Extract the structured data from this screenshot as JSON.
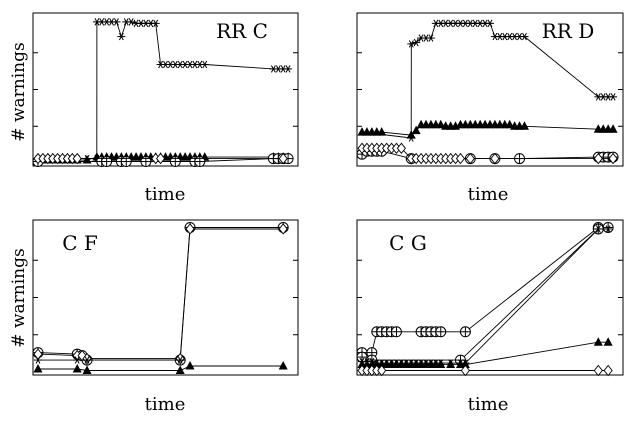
{
  "figure": {
    "panels": [
      {
        "title": "RR C",
        "xlabel": "time",
        "ylabel": "# warnings"
      },
      {
        "title": "RR D",
        "xlabel": "time",
        "ylabel": ""
      },
      {
        "title": "C F",
        "xlabel": "time",
        "ylabel": "# warnings"
      },
      {
        "title": "C G",
        "xlabel": "time",
        "ylabel": ""
      }
    ]
  },
  "chart_data": [
    {
      "type": "line",
      "title": "RR C",
      "xlabel": "time",
      "ylabel": "# warnings",
      "xlim": [
        0,
        26
      ],
      "ylim": [
        0,
        100
      ],
      "grid": false,
      "legend": false,
      "tick_labels_shown": false,
      "series": [
        {
          "marker": "asterisk",
          "x": [
            0,
            1,
            2,
            3,
            4,
            5,
            6,
            6.01,
            6.5,
            7,
            7.5,
            8,
            8.5,
            9,
            9.5,
            10,
            10.5,
            11,
            11.5,
            12,
            12.5,
            13,
            13.5,
            14,
            14.5,
            15,
            15.5,
            16,
            16.5,
            17,
            24,
            24.5,
            25,
            25.5
          ],
          "y": [
            3,
            3,
            3,
            3,
            3,
            3,
            3,
            96,
            96,
            96,
            96,
            96,
            86,
            96,
            96,
            95,
            95,
            95,
            95,
            95,
            67,
            67,
            67,
            67,
            67,
            67,
            67,
            67,
            67,
            67,
            64,
            64,
            64,
            64
          ]
        },
        {
          "marker": "triangle",
          "x": [
            0,
            1,
            2,
            3,
            4,
            5,
            6,
            6.5,
            7,
            7.5,
            8,
            8.5,
            9,
            9.5,
            10,
            10.5,
            11,
            11.5,
            12,
            12.5,
            13,
            13.5,
            14,
            14.5,
            15,
            15.5,
            16,
            16.5,
            17,
            24,
            24.5,
            25,
            25.5
          ],
          "y": [
            2,
            2,
            2,
            2,
            2,
            2,
            4,
            4,
            4,
            4,
            4,
            4,
            4,
            4,
            4,
            4,
            4,
            4,
            4,
            4,
            4,
            4,
            4,
            4,
            4,
            4,
            4,
            4,
            4,
            4,
            4,
            4,
            4
          ]
        },
        {
          "marker": "circle-plus",
          "x": [
            0,
            6.5,
            7,
            8.5,
            9,
            11,
            14,
            16,
            16.5,
            24,
            24.5,
            25,
            25.5
          ],
          "y": [
            1,
            1,
            1,
            1,
            1,
            1,
            1,
            1,
            1,
            3,
            3,
            3,
            3
          ]
        },
        {
          "marker": "diamond",
          "x": [
            0,
            0.5,
            1,
            1.5,
            2,
            2.5,
            3,
            3.5,
            4,
            12,
            12.5,
            25
          ],
          "y": [
            3,
            3,
            3,
            3,
            3,
            3,
            3,
            3,
            3,
            3,
            3,
            3
          ]
        }
      ]
    },
    {
      "type": "line",
      "title": "RR D",
      "xlabel": "time",
      "ylabel": "",
      "xlim": [
        0,
        26
      ],
      "ylim": [
        0,
        100
      ],
      "grid": false,
      "legend": false,
      "tick_labels_shown": false,
      "series": [
        {
          "marker": "asterisk",
          "x": [
            5,
            5.01,
            5.5,
            6,
            6.5,
            7,
            7.5,
            8,
            8.5,
            9,
            9.5,
            10,
            10.5,
            11,
            11.5,
            12,
            12.5,
            13,
            13.5,
            14,
            14.5,
            15,
            15.5,
            16,
            16.5,
            24,
            24.5,
            25,
            25.5
          ],
          "y": [
            17,
            81,
            82,
            85,
            85,
            85,
            95,
            95,
            95,
            95,
            95,
            95,
            95,
            95,
            95,
            95,
            95,
            95,
            86,
            86,
            86,
            86,
            86,
            86,
            86,
            45,
            45,
            45,
            45
          ],
          "first_segment": "from triangle series start"
        },
        {
          "marker": "triangle",
          "x": [
            0,
            0.5,
            1,
            1.5,
            2,
            5,
            5.5,
            6,
            6.5,
            7,
            7.5,
            8,
            8.5,
            9,
            9.5,
            10,
            10.5,
            11,
            11.5,
            12,
            12.5,
            13,
            13.5,
            14,
            14.5,
            15,
            15.5,
            16,
            16.5,
            24,
            24.5,
            25,
            25.5
          ],
          "y": [
            21,
            21,
            21,
            21,
            21,
            19,
            22,
            26,
            26,
            26,
            26,
            26,
            25,
            25,
            25,
            26,
            26,
            26,
            26,
            26,
            26,
            26,
            26,
            26,
            26,
            26,
            25,
            25,
            25,
            23,
            23,
            23,
            23
          ]
        },
        {
          "marker": "circle-plus",
          "x": [
            0,
            0.5,
            1,
            1.5,
            2,
            5,
            11,
            13.5,
            16,
            24,
            24.5,
            25,
            25.5
          ],
          "y": [
            6,
            8,
            8,
            8,
            8,
            3,
            3,
            3,
            3,
            4,
            4,
            4,
            4
          ]
        },
        {
          "marker": "diamond",
          "x": [
            0,
            0.5,
            1,
            1.5,
            2,
            2.5,
            3,
            3.5,
            4,
            5,
            5.5,
            6,
            6.5,
            7,
            7.5,
            8,
            8.5,
            9,
            9.5,
            10,
            11,
            13.5,
            24,
            25.5
          ],
          "y": [
            10,
            10,
            10,
            10,
            10,
            10,
            10,
            10,
            10,
            3,
            3,
            3,
            3,
            3,
            3,
            3,
            3,
            3,
            3,
            3,
            3,
            3,
            3,
            3
          ]
        }
      ]
    },
    {
      "type": "line",
      "title": "C F",
      "xlabel": "time",
      "ylabel": "# warnings",
      "xlim": [
        0,
        26
      ],
      "ylim": [
        0,
        100
      ],
      "grid": false,
      "legend": false,
      "tick_labels_shown": false,
      "series": [
        {
          "marker": "circle-plus",
          "x": [
            0,
            4,
            4.5,
            5,
            14.5,
            15.5,
            25
          ],
          "y": [
            13,
            12,
            11,
            8,
            8,
            97,
            97
          ]
        },
        {
          "marker": "diamond",
          "x": [
            0,
            4,
            4.5,
            5,
            14.5,
            15.5,
            25
          ],
          "y": [
            12,
            11,
            11,
            9,
            9,
            96,
            96
          ]
        },
        {
          "marker": "asterisk",
          "x": [
            0,
            4,
            5,
            14.5
          ],
          "y": [
            8,
            8,
            8,
            8
          ]
        },
        {
          "marker": "triangle",
          "x": [
            0,
            4,
            5,
            14.5,
            15.5,
            25
          ],
          "y": [
            2,
            2,
            1,
            1,
            4,
            4
          ]
        }
      ]
    },
    {
      "type": "line",
      "title": "C G",
      "xlabel": "time",
      "ylabel": "",
      "xlim": [
        0,
        26
      ],
      "ylim": [
        0,
        100
      ],
      "grid": false,
      "legend": false,
      "tick_labels_shown": false,
      "series": [
        {
          "marker": "circle-plus",
          "x": [
            0,
            1,
            1.5,
            2,
            2.5,
            3,
            3.5,
            6,
            6.5,
            7,
            7.5,
            8,
            10.5,
            24,
            25
          ],
          "y": [
            13,
            13,
            27,
            27,
            27,
            27,
            27,
            27,
            27,
            27,
            27,
            27,
            27,
            97,
            97
          ]
        },
        {
          "marker": "circle-plus",
          "x": [
            0,
            1,
            10,
            24
          ],
          "y": [
            10,
            8,
            8,
            96
          ]
        },
        {
          "marker": "asterisk",
          "x": [
            0,
            0.5,
            1,
            1.5,
            2,
            2.5,
            3,
            3.5,
            4,
            4.5,
            5,
            5.5,
            6,
            6.5,
            7,
            7.5,
            8,
            9,
            10,
            10.5,
            24,
            25
          ],
          "y": [
            7,
            7,
            7,
            6,
            6,
            6,
            6,
            6,
            6,
            6,
            6,
            6,
            6,
            6,
            6,
            6,
            6,
            6,
            6,
            6,
            96,
            96
          ]
        },
        {
          "marker": "triangle",
          "x": [
            0,
            0.5,
            1,
            1.5,
            2,
            2.5,
            3,
            3.5,
            4,
            4.5,
            5,
            5.5,
            6,
            6.5,
            7,
            7.5,
            8,
            9,
            10,
            10.5,
            24,
            25
          ],
          "y": [
            5,
            5,
            5,
            5,
            5,
            5,
            5,
            5,
            5,
            5,
            5,
            5,
            5,
            5,
            5,
            5,
            5,
            5,
            5,
            5,
            20,
            20
          ]
        },
        {
          "marker": "diamond",
          "x": [
            0,
            0.5,
            1,
            1.5,
            2,
            10.5,
            24,
            25
          ],
          "y": [
            1,
            1,
            1,
            1,
            1,
            1,
            1,
            1
          ]
        }
      ]
    }
  ]
}
